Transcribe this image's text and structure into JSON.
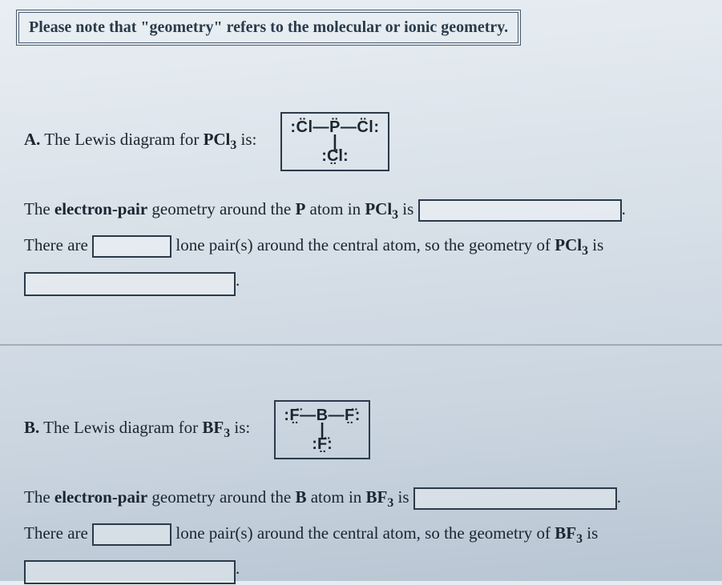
{
  "note": "Please note that \"geometry\" refers to the molecular or ionic geometry.",
  "A": {
    "prompt_prefix": "A.",
    "prompt_text": "The Lewis diagram for",
    "formula_base": "PCl",
    "formula_sub": "3",
    "prompt_suffix": "is:",
    "lewis_top": ":C̈l—P̈—C̈l:",
    "lewis_mid": "|",
    "lewis_bot": ":C̤̈l:",
    "q1_a": "The",
    "q1_b": "electron-pair",
    "q1_c": "geometry around the",
    "q1_d": "P",
    "q1_e": "atom in",
    "q1_f": "is",
    "q2_a": "There are",
    "q2_b": "lone pair(s) around the central atom, so the geometry of",
    "q2_c": "is"
  },
  "B": {
    "prompt_prefix": "B.",
    "prompt_text": "The Lewis diagram for",
    "formula_base": "BF",
    "formula_sub": "3",
    "prompt_suffix": "is:",
    "lewis_top": ":F̤̈—B—F̤̈:",
    "lewis_mid": "|",
    "lewis_bot": ":F̤̈:",
    "q1_a": "The",
    "q1_b": "electron-pair",
    "q1_c": "geometry around the",
    "q1_d": "B",
    "q1_e": "atom in",
    "q1_f": "is",
    "q2_a": "There are",
    "q2_b": "lone pair(s) around the central atom, so the geometry of",
    "q2_c": "is"
  }
}
